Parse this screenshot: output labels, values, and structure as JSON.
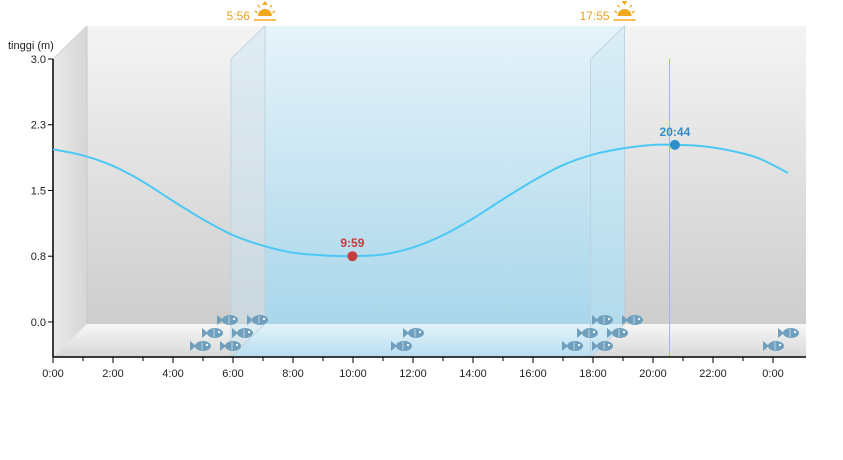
{
  "chart_data": {
    "type": "line",
    "ylabel": "tinggi (m)",
    "xlabel": "",
    "title": "",
    "x_range_hours": [
      0,
      24.5
    ],
    "ylim": [
      -0.4,
      3.0
    ],
    "x_ticks": [
      {
        "h": 0,
        "label": "0:00"
      },
      {
        "h": 2,
        "label": "2:00"
      },
      {
        "h": 4,
        "label": "4:00"
      },
      {
        "h": 6,
        "label": "6:00"
      },
      {
        "h": 8,
        "label": "8:00"
      },
      {
        "h": 10,
        "label": "10:00"
      },
      {
        "h": 12,
        "label": "12:00"
      },
      {
        "h": 14,
        "label": "14:00"
      },
      {
        "h": 16,
        "label": "16:00"
      },
      {
        "h": 18,
        "label": "18:00"
      },
      {
        "h": 20,
        "label": "20:00"
      },
      {
        "h": 22,
        "label": "22:00"
      },
      {
        "h": 24,
        "label": "0:00"
      }
    ],
    "y_ticks": [
      {
        "v": 0.0,
        "label": "0.0"
      },
      {
        "v": 0.75,
        "label": "0.8"
      },
      {
        "v": 1.5,
        "label": "1.5"
      },
      {
        "v": 2.25,
        "label": "2.3"
      },
      {
        "v": 3.0,
        "label": "3.0"
      }
    ],
    "series": [
      {
        "color": "#4cc8f4",
        "points": [
          [
            0,
            1.97
          ],
          [
            1,
            1.9
          ],
          [
            2,
            1.78
          ],
          [
            3,
            1.6
          ],
          [
            4,
            1.38
          ],
          [
            5,
            1.17
          ],
          [
            6,
            0.99
          ],
          [
            7,
            0.87
          ],
          [
            8,
            0.79
          ],
          [
            9,
            0.76
          ],
          [
            9.98,
            0.75
          ],
          [
            11,
            0.77
          ],
          [
            12,
            0.85
          ],
          [
            13,
            0.99
          ],
          [
            14,
            1.18
          ],
          [
            15,
            1.4
          ],
          [
            16,
            1.61
          ],
          [
            17,
            1.79
          ],
          [
            18,
            1.91
          ],
          [
            19,
            1.98
          ],
          [
            20,
            2.02
          ],
          [
            20.73,
            2.02
          ],
          [
            21.5,
            2.01
          ],
          [
            22.5,
            1.96
          ],
          [
            23.5,
            1.87
          ],
          [
            24.5,
            1.7
          ]
        ]
      }
    ],
    "extremes": [
      {
        "h": 9.98,
        "v": 0.75,
        "label": "9:59",
        "color": "#c63d3d"
      },
      {
        "h": 20.73,
        "v": 2.02,
        "label": "20:44",
        "color": "#2f8fcc"
      }
    ],
    "daylight_hours": [
      5.93,
      17.92
    ],
    "sun_events": [
      {
        "h": 5.93,
        "label": "5:56",
        "kind": "sunrise"
      },
      {
        "h": 17.92,
        "label": "17:55",
        "kind": "sunset"
      }
    ],
    "current_time_h": 20.55,
    "fish_markers": [
      {
        "h": 5.0,
        "row": 0
      },
      {
        "h": 5.4,
        "row": 1
      },
      {
        "h": 5.9,
        "row": 2
      },
      {
        "h": 6.0,
        "row": 0
      },
      {
        "h": 6.4,
        "row": 1
      },
      {
        "h": 6.9,
        "row": 2
      },
      {
        "h": 11.7,
        "row": 0
      },
      {
        "h": 12.1,
        "row": 1
      },
      {
        "h": 17.4,
        "row": 0
      },
      {
        "h": 17.9,
        "row": 1
      },
      {
        "h": 18.4,
        "row": 2
      },
      {
        "h": 18.4,
        "row": 0
      },
      {
        "h": 18.9,
        "row": 1
      },
      {
        "h": 19.4,
        "row": 2
      },
      {
        "h": 24.1,
        "row": 0
      },
      {
        "h": 24.6,
        "row": 1
      }
    ],
    "grid": false,
    "legend": "none"
  }
}
